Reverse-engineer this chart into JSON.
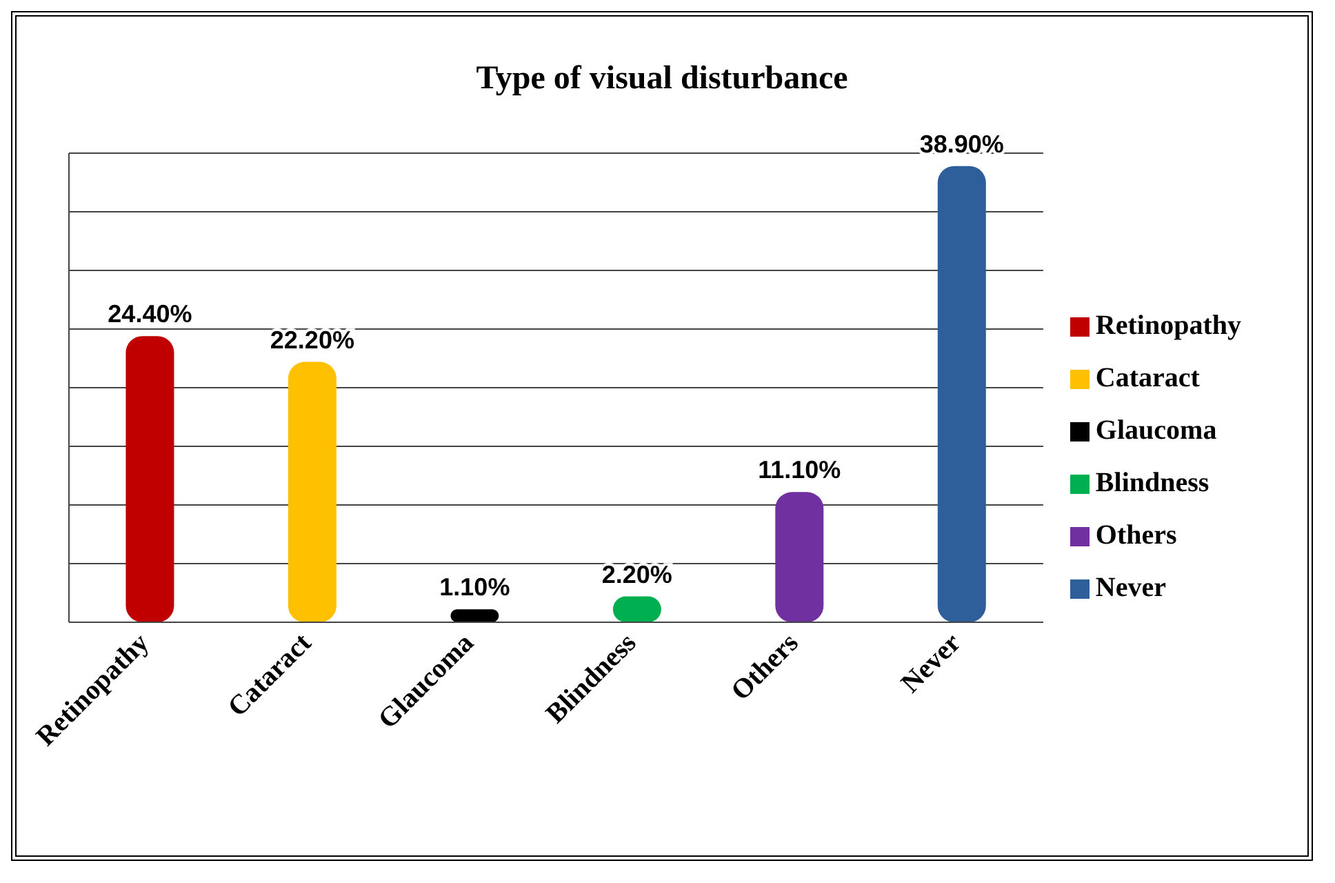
{
  "chart_data": {
    "type": "bar",
    "title": "Type of visual disturbance",
    "stacked": true,
    "categories": [
      "Retinopathy",
      "Cataract",
      "Glaucoma",
      "Blindness",
      "Others",
      "Never"
    ],
    "series": [
      {
        "name": "Retinopathy",
        "color": "#c00000",
        "values": [
          24.4,
          null,
          null,
          null,
          null,
          null
        ],
        "value_labels": [
          "24.40%",
          null,
          null,
          null,
          null,
          null
        ]
      },
      {
        "name": "Cataract",
        "color": "#ffc000",
        "values": [
          null,
          22.2,
          null,
          null,
          null,
          null
        ],
        "value_labels": [
          null,
          "22.20%",
          null,
          null,
          null,
          null
        ]
      },
      {
        "name": "Glaucoma",
        "color": "#000000",
        "values": [
          null,
          null,
          1.1,
          null,
          null,
          null
        ],
        "value_labels": [
          null,
          null,
          "1.10%",
          null,
          null,
          null
        ]
      },
      {
        "name": "Blindness",
        "color": "#00b050",
        "values": [
          null,
          null,
          null,
          2.2,
          null,
          null
        ],
        "value_labels": [
          null,
          null,
          null,
          "2.20%",
          null,
          null
        ]
      },
      {
        "name": "Others",
        "color": "#7030a0",
        "values": [
          null,
          null,
          null,
          null,
          11.1,
          null
        ],
        "value_labels": [
          null,
          null,
          null,
          null,
          "11.10%",
          null
        ]
      },
      {
        "name": "Never",
        "color": "#2e5f9a",
        "values": [
          null,
          null,
          null,
          null,
          null,
          38.9
        ],
        "value_labels": [
          null,
          null,
          null,
          null,
          null,
          "38.90%"
        ]
      }
    ],
    "ylim": [
      0,
      40
    ],
    "tick_labels": "x",
    "grid": "y",
    "legend": "right"
  }
}
